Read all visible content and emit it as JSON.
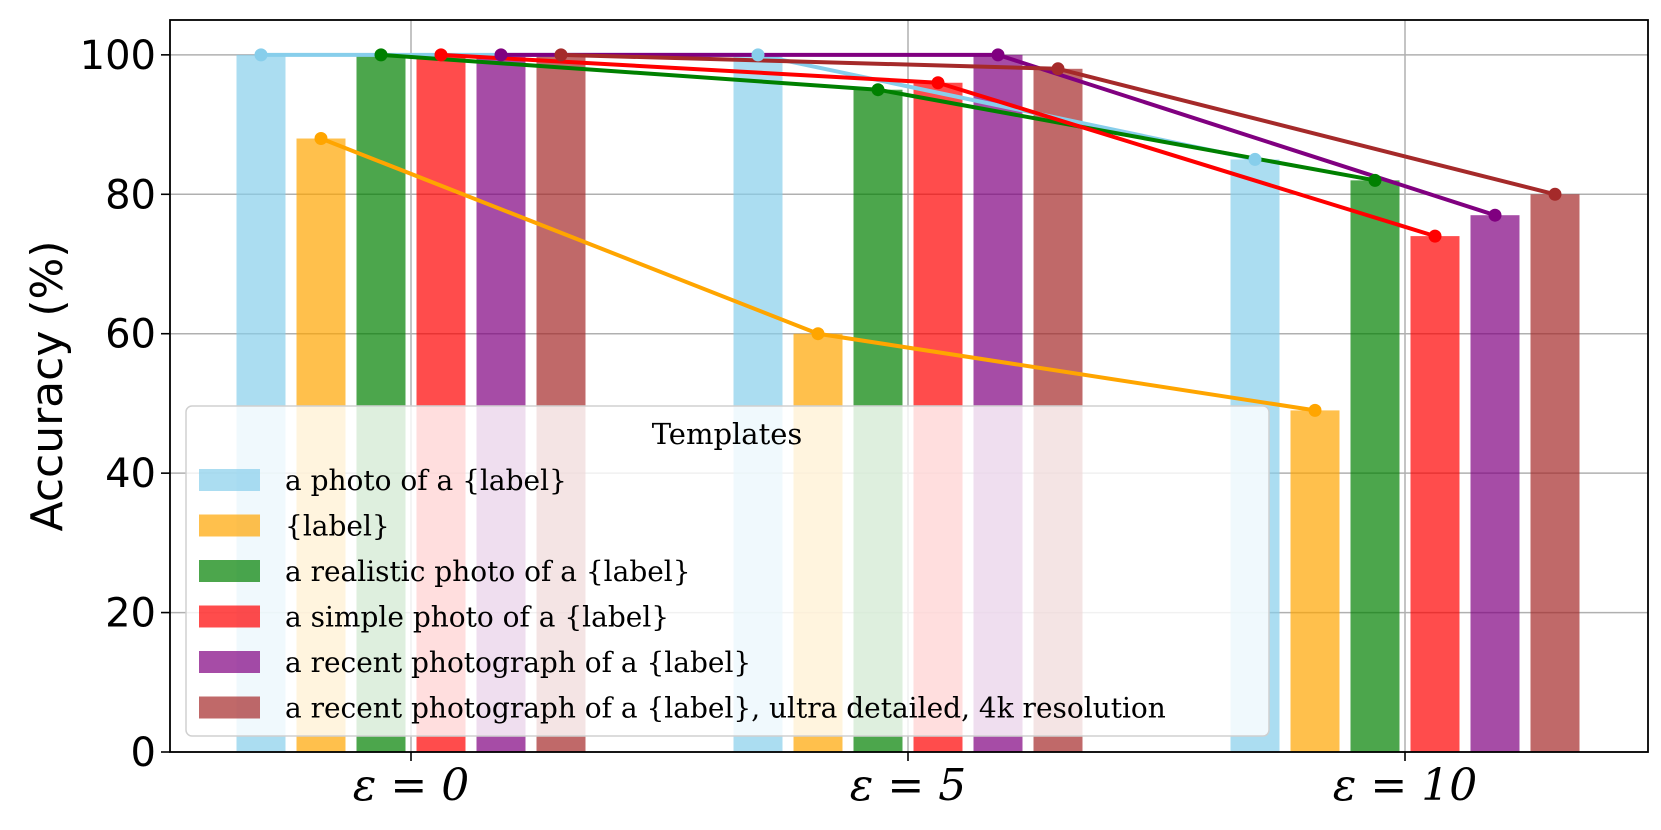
{
  "chart_data": {
    "type": "bar",
    "categories": [
      "ε = 0",
      "ε = 5",
      "ε = 10"
    ],
    "ylabel": "Accuracy (%)",
    "xlabel": "",
    "ylim": [
      0,
      105
    ],
    "yticks": [
      0,
      20,
      40,
      60,
      80,
      100
    ],
    "grid": true,
    "legend": {
      "title": "Templates",
      "placement": "center-left"
    },
    "overlay": "line with markers connecting each series across categories",
    "series": [
      {
        "name": "a photo of a {label}",
        "color": "#87CEEB",
        "values": [
          100,
          100,
          85
        ]
      },
      {
        "name": "{label}",
        "color": "#FFA500",
        "values": [
          88,
          60,
          49
        ]
      },
      {
        "name": "a realistic photo of a {label}",
        "color": "#008000",
        "values": [
          100,
          95,
          82
        ]
      },
      {
        "name": "a simple photo of a {label}",
        "color": "#FF0000",
        "values": [
          100,
          96,
          74
        ]
      },
      {
        "name": "a recent photograph of a {label}",
        "color": "#800080",
        "values": [
          100,
          100,
          77
        ]
      },
      {
        "name": "a recent photograph of a {label}, ultra detailed, 4k resolution",
        "color": "#A52A2A",
        "values": [
          100,
          98,
          80
        ]
      }
    ]
  }
}
